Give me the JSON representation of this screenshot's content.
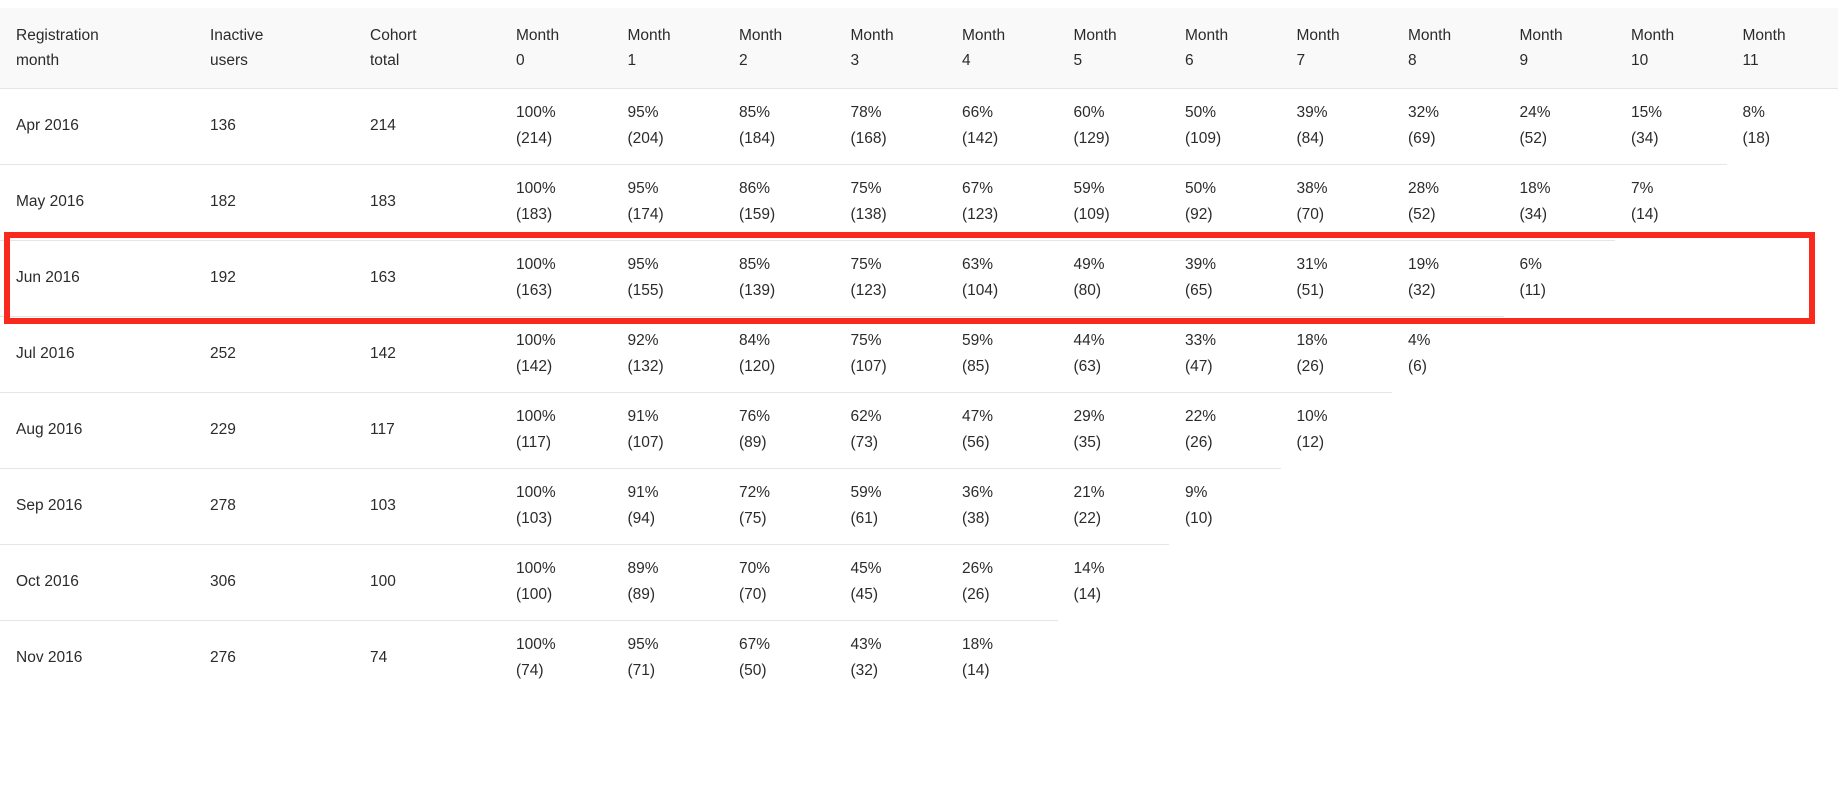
{
  "page": {
    "background": "#ffffff"
  },
  "colors": {
    "header_bg": "#f9f9f9",
    "row_border": "#e6e6e6",
    "text": "#2b2b2b",
    "highlight_border": "#f9291d"
  },
  "highlight": {
    "row": "Jun 2016",
    "border_color": "#f9291d"
  },
  "table": {
    "columns": [
      "Registration month",
      "Inactive users",
      "Cohort total",
      "Month 0",
      "Month 1",
      "Month 2",
      "Month 3",
      "Month 4",
      "Month 5",
      "Month 6",
      "Month 7",
      "Month 8",
      "Month 9",
      "Month 10",
      "Month 11"
    ],
    "rows": [
      {
        "registration_month": "Apr 2016",
        "inactive_users": "136",
        "cohort_total": "214",
        "highlighted": false,
        "months": [
          {
            "pct": "100%",
            "count": "(214)"
          },
          {
            "pct": "95%",
            "count": "(204)"
          },
          {
            "pct": "85%",
            "count": "(184)"
          },
          {
            "pct": "78%",
            "count": "(168)"
          },
          {
            "pct": "66%",
            "count": "(142)"
          },
          {
            "pct": "60%",
            "count": "(129)"
          },
          {
            "pct": "50%",
            "count": "(109)"
          },
          {
            "pct": "39%",
            "count": "(84)"
          },
          {
            "pct": "32%",
            "count": "(69)"
          },
          {
            "pct": "24%",
            "count": "(52)"
          },
          {
            "pct": "15%",
            "count": "(34)"
          },
          {
            "pct": "8%",
            "count": "(18)"
          }
        ]
      },
      {
        "registration_month": "May 2016",
        "inactive_users": "182",
        "cohort_total": "183",
        "highlighted": false,
        "months": [
          {
            "pct": "100%",
            "count": "(183)"
          },
          {
            "pct": "95%",
            "count": "(174)"
          },
          {
            "pct": "86%",
            "count": "(159)"
          },
          {
            "pct": "75%",
            "count": "(138)"
          },
          {
            "pct": "67%",
            "count": "(123)"
          },
          {
            "pct": "59%",
            "count": "(109)"
          },
          {
            "pct": "50%",
            "count": "(92)"
          },
          {
            "pct": "38%",
            "count": "(70)"
          },
          {
            "pct": "28%",
            "count": "(52)"
          },
          {
            "pct": "18%",
            "count": "(34)"
          },
          {
            "pct": "7%",
            "count": "(14)"
          },
          null
        ]
      },
      {
        "registration_month": "Jun 2016",
        "inactive_users": "192",
        "cohort_total": "163",
        "highlighted": true,
        "months": [
          {
            "pct": "100%",
            "count": "(163)"
          },
          {
            "pct": "95%",
            "count": "(155)"
          },
          {
            "pct": "85%",
            "count": "(139)"
          },
          {
            "pct": "75%",
            "count": "(123)"
          },
          {
            "pct": "63%",
            "count": "(104)"
          },
          {
            "pct": "49%",
            "count": "(80)"
          },
          {
            "pct": "39%",
            "count": "(65)"
          },
          {
            "pct": "31%",
            "count": "(51)"
          },
          {
            "pct": "19%",
            "count": "(32)"
          },
          {
            "pct": "6%",
            "count": "(11)"
          },
          null,
          null
        ]
      },
      {
        "registration_month": "Jul 2016",
        "inactive_users": "252",
        "cohort_total": "142",
        "highlighted": false,
        "months": [
          {
            "pct": "100%",
            "count": "(142)"
          },
          {
            "pct": "92%",
            "count": "(132)"
          },
          {
            "pct": "84%",
            "count": "(120)"
          },
          {
            "pct": "75%",
            "count": "(107)"
          },
          {
            "pct": "59%",
            "count": "(85)"
          },
          {
            "pct": "44%",
            "count": "(63)"
          },
          {
            "pct": "33%",
            "count": "(47)"
          },
          {
            "pct": "18%",
            "count": "(26)"
          },
          {
            "pct": "4%",
            "count": "(6)"
          },
          null,
          null,
          null
        ]
      },
      {
        "registration_month": "Aug 2016",
        "inactive_users": "229",
        "cohort_total": "117",
        "highlighted": false,
        "months": [
          {
            "pct": "100%",
            "count": "(117)"
          },
          {
            "pct": "91%",
            "count": "(107)"
          },
          {
            "pct": "76%",
            "count": "(89)"
          },
          {
            "pct": "62%",
            "count": "(73)"
          },
          {
            "pct": "47%",
            "count": "(56)"
          },
          {
            "pct": "29%",
            "count": "(35)"
          },
          {
            "pct": "22%",
            "count": "(26)"
          },
          {
            "pct": "10%",
            "count": "(12)"
          },
          null,
          null,
          null,
          null
        ]
      },
      {
        "registration_month": "Sep 2016",
        "inactive_users": "278",
        "cohort_total": "103",
        "highlighted": false,
        "months": [
          {
            "pct": "100%",
            "count": "(103)"
          },
          {
            "pct": "91%",
            "count": "(94)"
          },
          {
            "pct": "72%",
            "count": "(75)"
          },
          {
            "pct": "59%",
            "count": "(61)"
          },
          {
            "pct": "36%",
            "count": "(38)"
          },
          {
            "pct": "21%",
            "count": "(22)"
          },
          {
            "pct": "9%",
            "count": "(10)"
          },
          null,
          null,
          null,
          null,
          null
        ]
      },
      {
        "registration_month": "Oct 2016",
        "inactive_users": "306",
        "cohort_total": "100",
        "highlighted": false,
        "months": [
          {
            "pct": "100%",
            "count": "(100)"
          },
          {
            "pct": "89%",
            "count": "(89)"
          },
          {
            "pct": "70%",
            "count": "(70)"
          },
          {
            "pct": "45%",
            "count": "(45)"
          },
          {
            "pct": "26%",
            "count": "(26)"
          },
          {
            "pct": "14%",
            "count": "(14)"
          },
          null,
          null,
          null,
          null,
          null,
          null
        ]
      },
      {
        "registration_month": "Nov 2016",
        "inactive_users": "276",
        "cohort_total": "74",
        "highlighted": false,
        "months": [
          {
            "pct": "100%",
            "count": "(74)"
          },
          {
            "pct": "95%",
            "count": "(71)"
          },
          {
            "pct": "67%",
            "count": "(50)"
          },
          {
            "pct": "43%",
            "count": "(32)"
          },
          {
            "pct": "18%",
            "count": "(14)"
          },
          null,
          null,
          null,
          null,
          null,
          null,
          null
        ]
      }
    ]
  }
}
